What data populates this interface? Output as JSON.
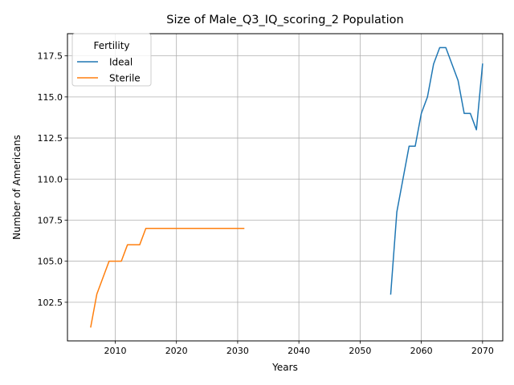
{
  "chart_data": {
    "type": "line",
    "title": "Size of Male_Q3_IQ_scoring_2 Population",
    "xlabel": "Years",
    "ylabel": "Number of Americans",
    "xlim": [
      2002.2,
      2073.3
    ],
    "ylim": [
      100.15,
      118.85
    ],
    "xticks": [
      2010,
      2020,
      2030,
      2040,
      2050,
      2060,
      2070
    ],
    "yticks": [
      102.5,
      105.0,
      107.5,
      110.0,
      112.5,
      115.0,
      117.5
    ],
    "ytick_labels": [
      "102.5",
      "105.0",
      "107.5",
      "110.0",
      "112.5",
      "115.0",
      "117.5"
    ],
    "grid": true,
    "legend": {
      "title": "Fertility",
      "placement": "top-left"
    },
    "series": [
      {
        "name": "Ideal",
        "color": "#1f77b4",
        "x": [
          2055,
          2056,
          2057,
          2058,
          2059,
          2060,
          2061,
          2062,
          2063,
          2064,
          2065,
          2066,
          2067,
          2068,
          2069,
          2070
        ],
        "values": [
          103,
          108,
          110,
          112,
          112,
          114,
          115,
          117,
          118,
          118,
          117,
          116,
          114,
          114,
          113,
          117
        ]
      },
      {
        "name": "Sterile",
        "color": "#ff7f0e",
        "x": [
          2006,
          2007,
          2008,
          2009,
          2010,
          2011,
          2012,
          2013,
          2014,
          2015,
          2016,
          2017,
          2018,
          2019,
          2020,
          2021,
          2022,
          2023,
          2024,
          2025,
          2026,
          2027,
          2028,
          2029,
          2030,
          2031
        ],
        "values": [
          101,
          103,
          104,
          105,
          105,
          105,
          106,
          106,
          106,
          107,
          107,
          107,
          107,
          107,
          107,
          107,
          107,
          107,
          107,
          107,
          107,
          107,
          107,
          107,
          107,
          107
        ]
      }
    ]
  }
}
